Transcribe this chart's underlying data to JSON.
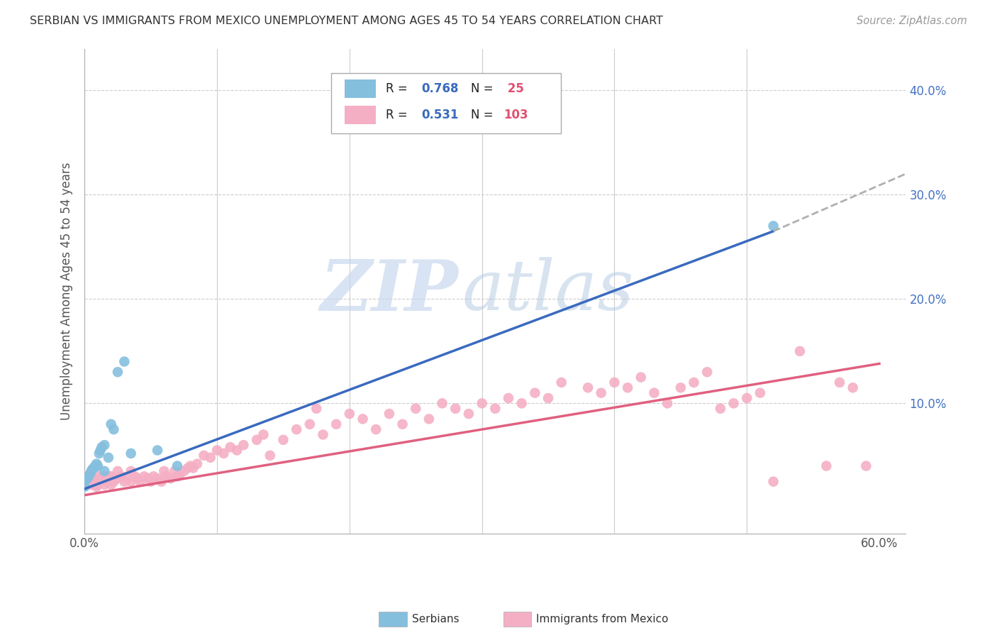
{
  "title": "SERBIAN VS IMMIGRANTS FROM MEXICO UNEMPLOYMENT AMONG AGES 45 TO 54 YEARS CORRELATION CHART",
  "source": "Source: ZipAtlas.com",
  "ylabel": "Unemployment Among Ages 45 to 54 years",
  "xlim": [
    0.0,
    0.62
  ],
  "ylim": [
    -0.025,
    0.44
  ],
  "watermark_zip": "ZIP",
  "watermark_atlas": "atlas",
  "serbian_color": "#85bfde",
  "mexico_color": "#f4afc4",
  "serbian_line_color": "#3a6abf",
  "mexico_line_color": "#e06080",
  "dashed_line_color": "#b0b0b0",
  "legend_R_color": "#3a6abf",
  "legend_N_color": "#e05070",
  "serbian_R": 0.768,
  "serbian_N": 25,
  "mexico_R": 0.531,
  "mexico_N": 103,
  "serbian_scatter_x": [
    0.0,
    0.0,
    0.002,
    0.003,
    0.004,
    0.005,
    0.006,
    0.007,
    0.008,
    0.009,
    0.01,
    0.011,
    0.012,
    0.013,
    0.015,
    0.015,
    0.018,
    0.02,
    0.022,
    0.025,
    0.03,
    0.035,
    0.055,
    0.07,
    0.52
  ],
  "serbian_scatter_y": [
    0.02,
    0.025,
    0.028,
    0.03,
    0.032,
    0.035,
    0.037,
    0.038,
    0.04,
    0.042,
    0.04,
    0.052,
    0.055,
    0.058,
    0.06,
    0.035,
    0.048,
    0.08,
    0.075,
    0.13,
    0.14,
    0.052,
    0.055,
    0.04,
    0.27
  ],
  "mexico_scatter_x": [
    0.0,
    0.0,
    0.002,
    0.003,
    0.004,
    0.005,
    0.005,
    0.006,
    0.007,
    0.008,
    0.009,
    0.01,
    0.01,
    0.012,
    0.013,
    0.014,
    0.015,
    0.015,
    0.016,
    0.018,
    0.02,
    0.02,
    0.022,
    0.025,
    0.025,
    0.028,
    0.03,
    0.032,
    0.035,
    0.035,
    0.038,
    0.04,
    0.042,
    0.045,
    0.048,
    0.05,
    0.052,
    0.055,
    0.058,
    0.06,
    0.062,
    0.065,
    0.068,
    0.07,
    0.072,
    0.075,
    0.078,
    0.08,
    0.082,
    0.085,
    0.09,
    0.095,
    0.1,
    0.105,
    0.11,
    0.115,
    0.12,
    0.13,
    0.135,
    0.14,
    0.15,
    0.16,
    0.17,
    0.175,
    0.18,
    0.19,
    0.2,
    0.21,
    0.22,
    0.23,
    0.24,
    0.25,
    0.26,
    0.27,
    0.28,
    0.29,
    0.3,
    0.31,
    0.32,
    0.33,
    0.34,
    0.35,
    0.36,
    0.38,
    0.39,
    0.4,
    0.41,
    0.42,
    0.43,
    0.44,
    0.45,
    0.46,
    0.47,
    0.48,
    0.49,
    0.5,
    0.51,
    0.52,
    0.54,
    0.56,
    0.57,
    0.58,
    0.59
  ],
  "mexico_scatter_y": [
    0.025,
    0.03,
    0.025,
    0.022,
    0.028,
    0.022,
    0.03,
    0.025,
    0.028,
    0.025,
    0.02,
    0.022,
    0.03,
    0.025,
    0.028,
    0.03,
    0.022,
    0.028,
    0.025,
    0.03,
    0.022,
    0.03,
    0.025,
    0.028,
    0.035,
    0.03,
    0.025,
    0.028,
    0.025,
    0.035,
    0.03,
    0.028,
    0.025,
    0.03,
    0.028,
    0.025,
    0.03,
    0.028,
    0.025,
    0.035,
    0.03,
    0.028,
    0.035,
    0.03,
    0.032,
    0.035,
    0.038,
    0.04,
    0.038,
    0.042,
    0.05,
    0.048,
    0.055,
    0.052,
    0.058,
    0.055,
    0.06,
    0.065,
    0.07,
    0.05,
    0.065,
    0.075,
    0.08,
    0.095,
    0.07,
    0.08,
    0.09,
    0.085,
    0.075,
    0.09,
    0.08,
    0.095,
    0.085,
    0.1,
    0.095,
    0.09,
    0.1,
    0.095,
    0.105,
    0.1,
    0.11,
    0.105,
    0.12,
    0.115,
    0.11,
    0.12,
    0.115,
    0.125,
    0.11,
    0.1,
    0.115,
    0.12,
    0.13,
    0.095,
    0.1,
    0.105,
    0.11,
    0.025,
    0.15,
    0.04,
    0.12,
    0.115,
    0.04
  ],
  "background_color": "#ffffff",
  "grid_color": "#dddddd"
}
